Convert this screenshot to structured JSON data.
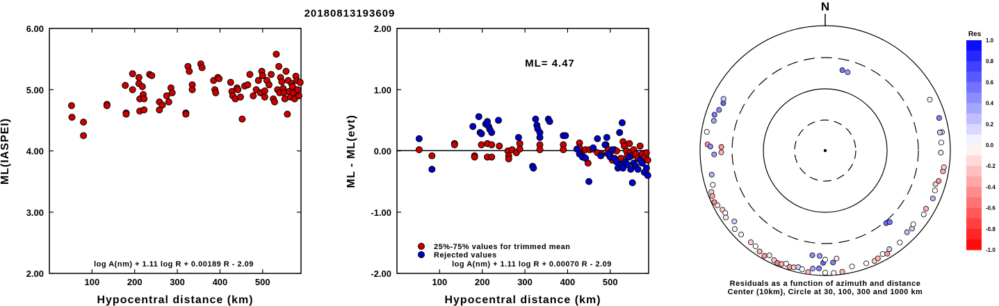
{
  "title": "20180813193609",
  "chart_data": [
    {
      "type": "scatter",
      "ylabel": "ML(IASPEI)",
      "xlabel": "Hypocentral distance (km)",
      "xlim": [
        0,
        590
      ],
      "ylim": [
        2.0,
        6.0
      ],
      "x_ticks": [
        "100",
        "200",
        "300",
        "400",
        "500"
      ],
      "y_ticks": [
        "2.00",
        "3.00",
        "4.00",
        "5.00",
        "6.00"
      ],
      "formula": "log A(nm) + 1.11 log R + 0.00189 R - 2.09",
      "color": "#cc0000",
      "points": [
        [
          52,
          4.74
        ],
        [
          53,
          4.55
        ],
        [
          80,
          4.47
        ],
        [
          80,
          4.25
        ],
        [
          135,
          4.76
        ],
        [
          135,
          4.74
        ],
        [
          178,
          5.07
        ],
        [
          180,
          4.62
        ],
        [
          180,
          4.6
        ],
        [
          195,
          5.26
        ],
        [
          195,
          5.0
        ],
        [
          210,
          5.2
        ],
        [
          210,
          5.1
        ],
        [
          212,
          4.85
        ],
        [
          212,
          4.65
        ],
        [
          218,
          5.05
        ],
        [
          220,
          4.92
        ],
        [
          222,
          4.85
        ],
        [
          222,
          4.67
        ],
        [
          235,
          5.25
        ],
        [
          240,
          5.23
        ],
        [
          258,
          4.8
        ],
        [
          258,
          4.67
        ],
        [
          265,
          4.75
        ],
        [
          275,
          4.9
        ],
        [
          280,
          4.8
        ],
        [
          285,
          5.03
        ],
        [
          288,
          4.95
        ],
        [
          320,
          4.62
        ],
        [
          320,
          4.6
        ],
        [
          325,
          5.38
        ],
        [
          328,
          5.3
        ],
        [
          335,
          5.08
        ],
        [
          335,
          5.0
        ],
        [
          355,
          5.42
        ],
        [
          358,
          5.36
        ],
        [
          385,
          5.15
        ],
        [
          388,
          5.0
        ],
        [
          390,
          4.95
        ],
        [
          395,
          5.2
        ],
        [
          398,
          5.18
        ],
        [
          425,
          5.12
        ],
        [
          428,
          4.97
        ],
        [
          430,
          4.9
        ],
        [
          436,
          4.85
        ],
        [
          440,
          5.03
        ],
        [
          442,
          5.0
        ],
        [
          448,
          4.88
        ],
        [
          452,
          4.52
        ],
        [
          458,
          5.06
        ],
        [
          465,
          5.08
        ],
        [
          470,
          5.25
        ],
        [
          478,
          4.9
        ],
        [
          485,
          5.0
        ],
        [
          490,
          5.15
        ],
        [
          495,
          4.95
        ],
        [
          498,
          5.3
        ],
        [
          500,
          5.23
        ],
        [
          505,
          4.98
        ],
        [
          505,
          4.88
        ],
        [
          510,
          5.15
        ],
        [
          515,
          5.08
        ],
        [
          520,
          5.25
        ],
        [
          525,
          4.85
        ],
        [
          528,
          4.8
        ],
        [
          532,
          5.58
        ],
        [
          535,
          5.0
        ],
        [
          538,
          5.38
        ],
        [
          540,
          4.95
        ],
        [
          542,
          5.2
        ],
        [
          545,
          5.13
        ],
        [
          548,
          5.02
        ],
        [
          550,
          4.95
        ],
        [
          552,
          4.85
        ],
        [
          555,
          5.3
        ],
        [
          558,
          4.6
        ],
        [
          560,
          5.15
        ],
        [
          562,
          4.97
        ],
        [
          565,
          4.88
        ],
        [
          568,
          5.1
        ],
        [
          570,
          5.05
        ],
        [
          572,
          4.95
        ],
        [
          575,
          4.85
        ],
        [
          578,
          5.22
        ],
        [
          580,
          5.15
        ],
        [
          582,
          5.0
        ],
        [
          585,
          4.9
        ],
        [
          588,
          5.12
        ]
      ]
    },
    {
      "type": "scatter",
      "ylabel": "ML - ML(evt)",
      "xlabel": "Hypocentral distance (km)",
      "xlim": [
        0,
        590
      ],
      "ylim": [
        -2.0,
        2.0
      ],
      "x_ticks": [
        "100",
        "200",
        "300",
        "400",
        "500"
      ],
      "y_ticks": [
        "-2.00",
        "-1.00",
        "0.00",
        "1.00",
        "2.00"
      ],
      "annotation": "ML= 4.47",
      "formula": "log A(nm) + 1.11 log R + 0.00070 R - 2.09",
      "legend": [
        "25%-75% values for trimmed mean",
        "Rejected values"
      ],
      "series": [
        {
          "name": "25%-75% values for trimmed mean",
          "color": "#cc0000",
          "points": [
            [
              52,
              0.02
            ],
            [
              82,
              -0.08
            ],
            [
              135,
              0.12
            ],
            [
              135,
              0.1
            ],
            [
              182,
              -0.08
            ],
            [
              182,
              -0.1
            ],
            [
              198,
              0.1
            ],
            [
              212,
              0.12
            ],
            [
              212,
              -0.1
            ],
            [
              222,
              0.1
            ],
            [
              222,
              -0.1
            ],
            [
              240,
              0.08
            ],
            [
              260,
              0.0
            ],
            [
              262,
              -0.08
            ],
            [
              262,
              -0.13
            ],
            [
              270,
              0.02
            ],
            [
              280,
              -0.03
            ],
            [
              288,
              0.12
            ],
            [
              288,
              0.03
            ],
            [
              335,
              0.1
            ],
            [
              335,
              0.02
            ],
            [
              390,
              0.1
            ],
            [
              390,
              0.02
            ],
            [
              428,
              0.13
            ],
            [
              428,
              0.05
            ],
            [
              432,
              -0.05
            ],
            [
              438,
              -0.1
            ],
            [
              442,
              0.02
            ],
            [
              448,
              -0.2
            ],
            [
              452,
              0.02
            ],
            [
              460,
              0.03
            ],
            [
              470,
              -0.03
            ],
            [
              480,
              -0.05
            ],
            [
              490,
              0.1
            ],
            [
              495,
              0.02
            ],
            [
              500,
              -0.03
            ],
            [
              505,
              -0.15
            ],
            [
              510,
              0.02
            ],
            [
              515,
              0.0
            ],
            [
              520,
              -0.2
            ],
            [
              525,
              -0.12
            ],
            [
              530,
              0.15
            ],
            [
              533,
              0.08
            ],
            [
              538,
              0.0
            ],
            [
              540,
              -0.08
            ],
            [
              545,
              0.12
            ],
            [
              548,
              -0.02
            ],
            [
              550,
              -0.08
            ],
            [
              555,
              0.02
            ],
            [
              560,
              -0.05
            ],
            [
              565,
              -0.12
            ],
            [
              570,
              0.08
            ],
            [
              575,
              -0.05
            ],
            [
              580,
              -0.1
            ],
            [
              585,
              -0.03
            ],
            [
              588,
              -0.15
            ]
          ]
        },
        {
          "name": "Rejected values",
          "color": "#0000cc",
          "points": [
            [
              52,
              0.2
            ],
            [
              82,
              -0.3
            ],
            [
              178,
              0.4
            ],
            [
              192,
              0.56
            ],
            [
              195,
              0.3
            ],
            [
              198,
              0.28
            ],
            [
              208,
              0.44
            ],
            [
              212,
              0.48
            ],
            [
              215,
              0.4
            ],
            [
              218,
              0.35
            ],
            [
              222,
              0.3
            ],
            [
              238,
              0.5
            ],
            [
              285,
              0.22
            ],
            [
              318,
              -0.25
            ],
            [
              320,
              -0.28
            ],
            [
              325,
              0.52
            ],
            [
              328,
              0.42
            ],
            [
              330,
              0.36
            ],
            [
              335,
              0.3
            ],
            [
              335,
              0.22
            ],
            [
              355,
              0.52
            ],
            [
              358,
              0.48
            ],
            [
              390,
              0.25
            ],
            [
              395,
              0.25
            ],
            [
              422,
              0.03
            ],
            [
              428,
              -0.05
            ],
            [
              435,
              -0.1
            ],
            [
              442,
              -0.12
            ],
            [
              450,
              -0.5
            ],
            [
              460,
              0.05
            ],
            [
              470,
              0.2
            ],
            [
              478,
              -0.08
            ],
            [
              488,
              0.1
            ],
            [
              492,
              0.22
            ],
            [
              495,
              -0.05
            ],
            [
              500,
              -0.1
            ],
            [
              505,
              0.02
            ],
            [
              510,
              -0.12
            ],
            [
              515,
              -0.18
            ],
            [
              518,
              -0.28
            ],
            [
              522,
              0.3
            ],
            [
              525,
              -0.22
            ],
            [
              528,
              0.46
            ],
            [
              530,
              -0.28
            ],
            [
              535,
              -0.18
            ],
            [
              540,
              -0.22
            ],
            [
              545,
              -0.1
            ],
            [
              548,
              -0.3
            ],
            [
              552,
              -0.52
            ],
            [
              555,
              -0.2
            ],
            [
              560,
              -0.25
            ],
            [
              565,
              -0.3
            ],
            [
              570,
              -0.15
            ],
            [
              575,
              -0.2
            ],
            [
              580,
              -0.35
            ],
            [
              585,
              -0.28
            ],
            [
              588,
              -0.4
            ]
          ]
        }
      ]
    },
    {
      "type": "scatter",
      "subtype": "polar",
      "north_label": "N",
      "caption_line1": "Residuals as a function of azimuth and distance",
      "caption_line2": "Center (10km), Circle at 30, 100, 300 and 1000 km",
      "ring_distances_km": [
        30,
        100,
        300,
        1000
      ],
      "colorbar": {
        "title": "Res",
        "min": -1.0,
        "max": 1.0,
        "tick_labels": [
          "1.0",
          "0.8",
          "0.6",
          "0.4",
          "0.2",
          "0.0",
          "-0.2",
          "-0.4",
          "-0.6",
          "-0.8",
          "-1.0"
        ]
      },
      "points_azimuth_distance_residual": [
        [
          12,
          205,
          0.55
        ],
        [
          16,
          200,
          0.4
        ],
        [
          295,
          620,
          0.6
        ],
        [
          291,
          650,
          0.45
        ],
        [
          297,
          660,
          0.2
        ],
        [
          288,
          720,
          0.5
        ],
        [
          285,
          690,
          0.35
        ],
        [
          279,
          820,
          0.0
        ],
        [
          273,
          760,
          -0.45
        ],
        [
          272,
          680,
          0.45
        ],
        [
          268,
          590,
          0.4
        ],
        [
          272,
          450,
          -0.4
        ],
        [
          269,
          450,
          -0.3
        ],
        [
          258,
          710,
          0.3
        ],
        [
          253,
          750,
          0.0
        ],
        [
          250,
          860,
          -0.2
        ],
        [
          248,
          880,
          -0.35
        ],
        [
          245,
          900,
          -0.45
        ],
        [
          243,
          850,
          -0.1
        ],
        [
          240,
          780,
          -0.2
        ],
        [
          238,
          760,
          0.0
        ],
        [
          236,
          820,
          -0.1
        ],
        [
          232,
          690,
          0.2
        ],
        [
          229,
          820,
          0.05
        ],
        [
          225,
          790,
          0.0
        ],
        [
          219,
          770,
          -0.2
        ],
        [
          216,
          780,
          0.0
        ],
        [
          213,
          840,
          -0.3
        ],
        [
          210,
          880,
          -0.4
        ],
        [
          208,
          790,
          -0.1
        ],
        [
          205,
          860,
          -0.2
        ],
        [
          203,
          900,
          -0.5
        ],
        [
          201,
          880,
          -0.3
        ],
        [
          199,
          820,
          0.0
        ],
        [
          197,
          890,
          -0.4
        ],
        [
          195,
          860,
          -0.2
        ],
        [
          193,
          820,
          0.2
        ],
        [
          191,
          860,
          0.0
        ],
        [
          188,
          920,
          -0.3
        ],
        [
          186,
          790,
          0.35
        ],
        [
          183,
          770,
          0.5
        ],
        [
          180,
          900,
          0.0
        ],
        [
          176,
          920,
          0.0
        ],
        [
          172,
          910,
          -0.3
        ],
        [
          167,
          800,
          0.0
        ],
        [
          160,
          830,
          0.0
        ],
        [
          156,
          860,
          -0.2
        ],
        [
          154,
          830,
          -0.3
        ],
        [
          151,
          780,
          0.0
        ],
        [
          149,
          840,
          -0.4
        ],
        [
          147,
          760,
          0.2
        ],
        [
          141,
          780,
          0.0
        ],
        [
          135,
          700,
          0.25
        ],
        [
          132,
          730,
          0.2
        ],
        [
          130,
          680,
          0.0
        ],
        [
          123,
          750,
          0.0
        ],
        [
          120,
          720,
          -0.3
        ],
        [
          114,
          760,
          0.3
        ],
        [
          110,
          730,
          0.0
        ],
        [
          107,
          690,
          -0.2
        ],
        [
          105,
          750,
          -0.4
        ],
        [
          100,
          810,
          -0.3
        ],
        [
          98,
          820,
          -0.2
        ],
        [
          91,
          700,
          -0.1
        ],
        [
          86,
          720,
          0.0
        ],
        [
          81,
          770,
          -0.2
        ],
        [
          81,
          710,
          0.2
        ],
        [
          74,
          780,
          0.5
        ],
        [
          64,
          720,
          -0.1
        ],
        [
          181,
          620,
          0.6
        ],
        [
          176,
          620,
          0.5
        ],
        [
          183,
          480,
          0.4
        ],
        [
          187,
          480,
          0.45
        ],
        [
          140,
          320,
          0.6
        ],
        [
          138,
          340,
          0.55
        ],
        [
          180,
          550,
          0.0
        ],
        [
          174,
          540,
          -0.1
        ]
      ]
    }
  ]
}
